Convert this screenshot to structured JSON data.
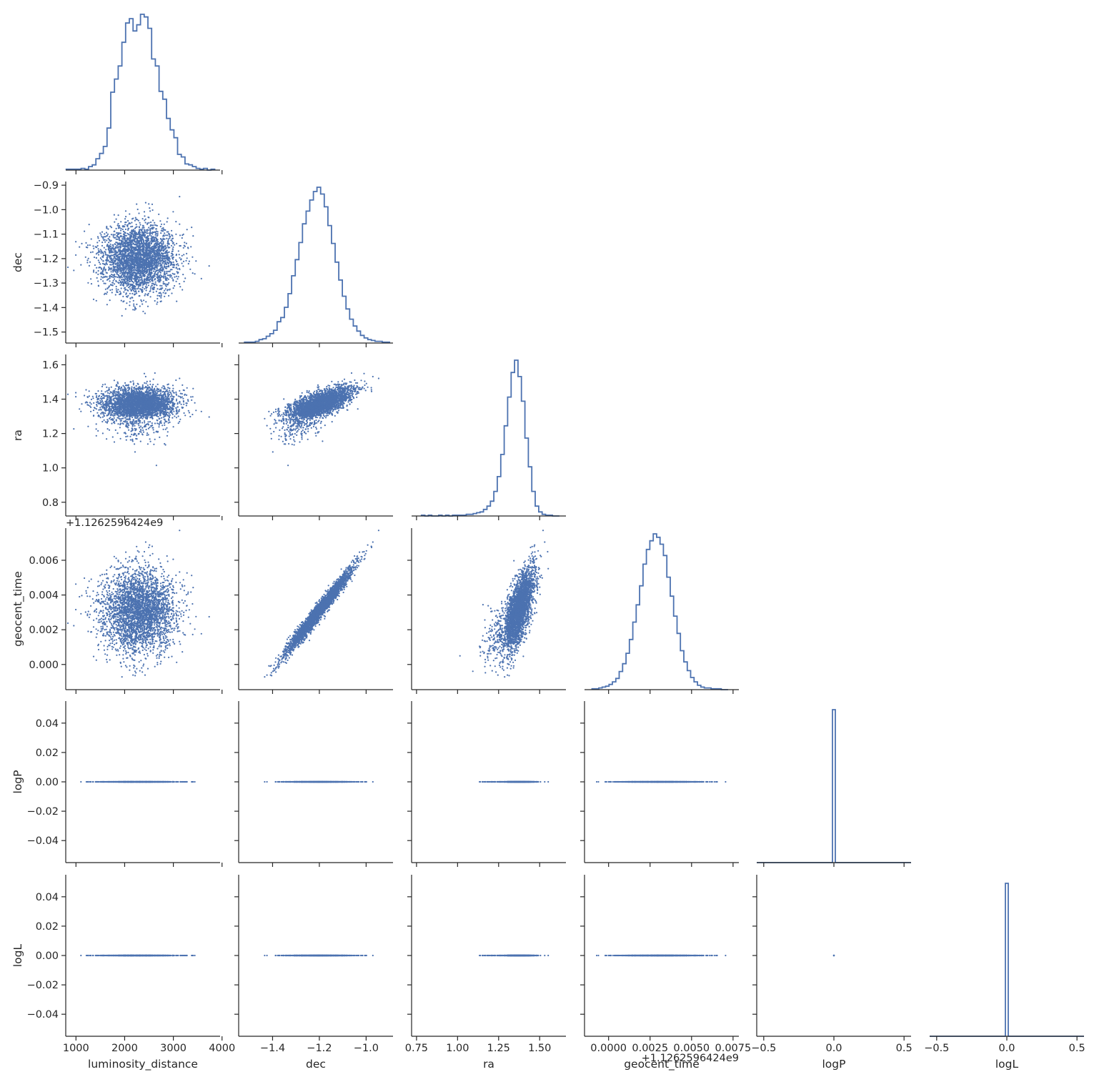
{
  "chart_data": {
    "type": "scatter",
    "layout": "corner pair plot",
    "color": "#4c72b0",
    "variables": [
      {
        "key": "luminosity_distance",
        "label": "luminosity_distance",
        "lim": [
          790,
          3960
        ],
        "xticks": [
          1000,
          2000,
          3000,
          4000
        ],
        "tick_labels": [
          "1000",
          "2000",
          "3000",
          "4000"
        ],
        "mean": 2300,
        "sd": 380
      },
      {
        "key": "dec",
        "label": "dec",
        "lim": [
          -1.545,
          -0.885
        ],
        "xticks": [
          -1.4,
          -1.2,
          -1.0
        ],
        "tick_labels": [
          "−1.4",
          "−1.2",
          "−1.0"
        ],
        "yticks": [
          -0.9,
          -1.0,
          -1.1,
          -1.2,
          -1.3,
          -1.4,
          -1.5
        ],
        "ytick_labels": [
          "−0.9",
          "−1.0",
          "−1.1",
          "−1.2",
          "−1.3",
          "−1.4",
          "−1.5"
        ],
        "mean": -1.2,
        "sd": 0.07
      },
      {
        "key": "ra",
        "label": "ra",
        "lim": [
          0.72,
          1.66
        ],
        "xticks": [
          0.75,
          1.0,
          1.25,
          1.5
        ],
        "tick_labels": [
          "0.75",
          "1.00",
          "1.25",
          "1.50"
        ],
        "yticks": [
          0.8,
          1.0,
          1.2,
          1.4,
          1.6
        ],
        "ytick_labels": [
          "0.8",
          "1.0",
          "1.2",
          "1.4",
          "1.6"
        ],
        "mean": 1.37,
        "sd": 0.05
      },
      {
        "key": "geocent_time",
        "label": "geocent_time",
        "offset_label": "+1.1262596424e9",
        "lim": [
          -0.00145,
          0.00785
        ],
        "xticks": [
          0.0,
          0.0025,
          0.005,
          0.0075
        ],
        "tick_labels": [
          "0.0000",
          "0.0025",
          "0.0050",
          "0.0075"
        ],
        "yticks": [
          0.006,
          0.004,
          0.002,
          0.0
        ],
        "ytick_labels": [
          "0.006",
          "0.004",
          "0.002",
          "0.000"
        ],
        "mean": 0.0031,
        "sd": 0.0012
      },
      {
        "key": "logP",
        "label": "logP",
        "lim": [
          -0.055,
          0.055
        ],
        "xlim": [
          -0.55,
          0.55
        ],
        "xticks": [
          -0.5,
          0.0,
          0.5
        ],
        "tick_labels": [
          "−0.5",
          "0.0",
          "0.5"
        ],
        "yticks": [
          0.04,
          0.02,
          0.0,
          -0.02,
          -0.04
        ],
        "ytick_labels": [
          "0.04",
          "0.02",
          "0.00",
          "−0.02",
          "−0.04"
        ],
        "constant": 0.0
      },
      {
        "key": "logL",
        "label": "logL",
        "lim": [
          -0.055,
          0.055
        ],
        "xlim": [
          -0.55,
          0.55
        ],
        "xticks": [
          -0.5,
          0.0,
          0.5
        ],
        "tick_labels": [
          "−0.5",
          "0.0",
          "0.5"
        ],
        "yticks": [
          0.04,
          0.02,
          0.0,
          -0.02,
          -0.04
        ],
        "ytick_labels": [
          "0.04",
          "0.02",
          "0.00",
          "−0.02",
          "−0.04"
        ],
        "constant": 0.0
      }
    ],
    "correlations": {
      "dec|ra": 0.72,
      "dec|geocent_time": 0.98,
      "ra|geocent_time": 0.62
    },
    "histograms": {
      "luminosity_distance": {
        "range": [
          800,
          3850
        ],
        "counts": [
          1,
          1,
          1,
          1,
          2,
          1,
          4,
          6,
          13,
          19,
          27,
          48,
          89,
          104,
          119,
          146,
          168,
          173,
          159,
          166,
          178,
          175,
          162,
          127,
          119,
          90,
          81,
          59,
          46,
          37,
          18,
          15,
          7,
          6,
          4,
          2,
          1,
          2,
          0,
          1
        ]
      },
      "dec": {
        "range": [
          -1.52,
          -0.9
        ],
        "counts": [
          1,
          1,
          1,
          2,
          4,
          5,
          8,
          11,
          15,
          25,
          30,
          42,
          58,
          79,
          98,
          118,
          140,
          155,
          168,
          178,
          183,
          175,
          160,
          138,
          117,
          95,
          74,
          55,
          40,
          28,
          20,
          14,
          9,
          6,
          4,
          3,
          2,
          2,
          1,
          1
        ]
      },
      "ra": {
        "range": [
          0.78,
          1.62
        ],
        "counts": [
          1,
          0,
          1,
          0,
          0,
          1,
          0,
          1,
          0,
          1,
          1,
          1,
          1,
          2,
          2,
          3,
          4,
          5,
          8,
          12,
          18,
          30,
          48,
          75,
          110,
          145,
          175,
          190,
          170,
          140,
          95,
          60,
          30,
          12,
          5,
          2,
          1,
          1,
          0,
          0
        ]
      },
      "geocent_time": {
        "range": [
          -0.001,
          0.0072
        ],
        "counts": [
          1,
          1,
          2,
          3,
          4,
          6,
          9,
          13,
          21,
          30,
          42,
          58,
          78,
          98,
          120,
          145,
          162,
          172,
          180,
          176,
          168,
          155,
          130,
          108,
          85,
          65,
          45,
          32,
          22,
          14,
          9,
          5,
          3,
          2,
          2,
          1,
          1,
          1,
          0,
          0
        ]
      }
    },
    "title": "",
    "grid": false,
    "legend": "none"
  }
}
